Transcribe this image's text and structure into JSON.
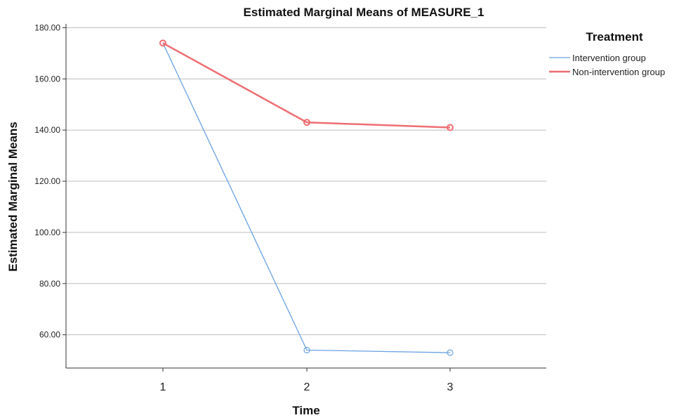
{
  "chart_data": {
    "type": "line",
    "title": "Estimated Marginal Means of MEASURE_1",
    "xlabel": "Time",
    "ylabel": "Estimated Marginal Means",
    "categories": [
      "1",
      "2",
      "3"
    ],
    "yticks": [
      "60.00",
      "80.00",
      "100.00",
      "120.00",
      "140.00",
      "160.00",
      "180.00"
    ],
    "ylim": [
      47,
      181.5
    ],
    "grid": true,
    "legend": {
      "title": "Treatment",
      "placement": "right"
    },
    "series": [
      {
        "name": "Intervention group",
        "values": [
          174.0,
          54.0,
          53.0
        ],
        "color": "#6aa2e3"
      },
      {
        "name": "Non-intervention group",
        "values": [
          174.0,
          143.0,
          141.0
        ],
        "color": "#ee6e73"
      }
    ]
  }
}
